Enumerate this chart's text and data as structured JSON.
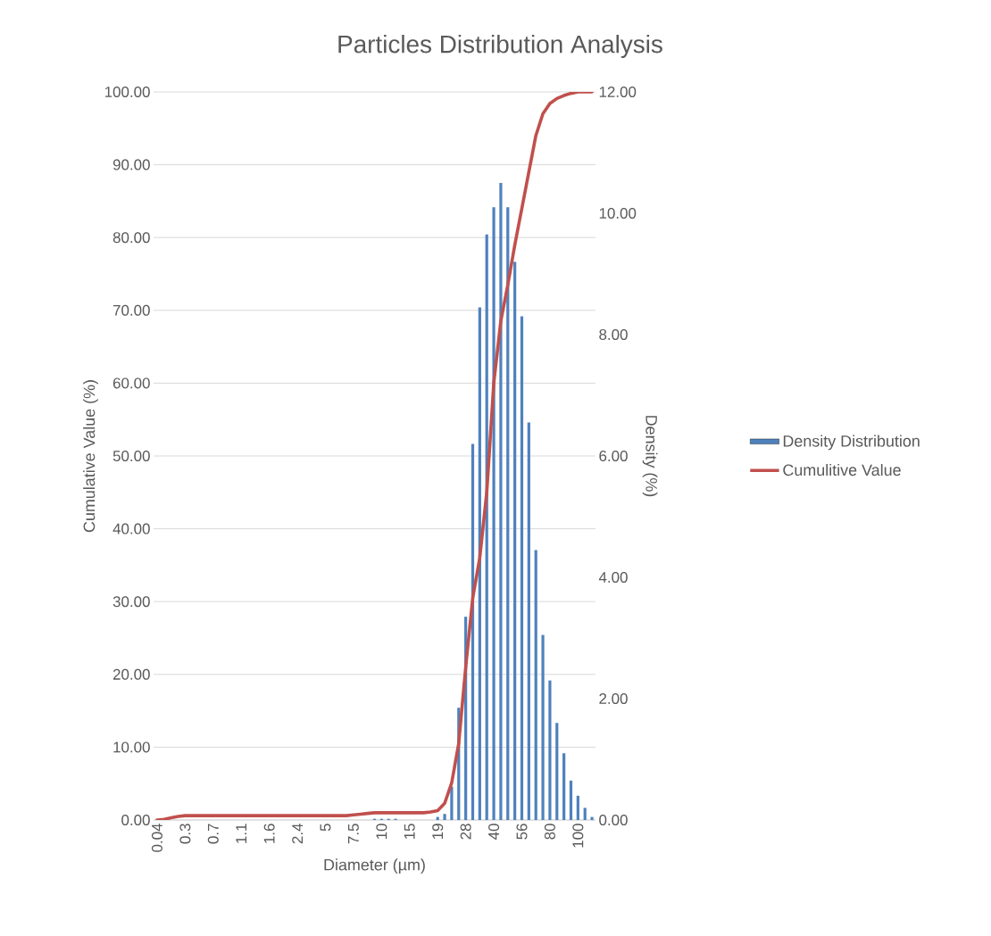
{
  "chart_data": {
    "type": "bar",
    "title": "Particles Distribution Analysis",
    "xlabel": "Diameter (µm)",
    "ylabel": "Cumulative Value (%)",
    "y2label": "Density (%)",
    "categories": [
      "0.04",
      null,
      null,
      null,
      "0.3",
      null,
      null,
      null,
      "0.7",
      null,
      null,
      null,
      "1.1",
      null,
      null,
      null,
      "1.6",
      null,
      null,
      null,
      "2.4",
      null,
      null,
      null,
      "5",
      null,
      null,
      null,
      "7.5",
      null,
      null,
      null,
      "10",
      null,
      null,
      null,
      "15",
      null,
      null,
      null,
      "19",
      null,
      null,
      null,
      "28",
      null,
      null,
      null,
      "40",
      null,
      null,
      null,
      "56",
      null,
      null,
      null,
      "80",
      null,
      null,
      null,
      "100",
      null,
      null
    ],
    "series": [
      {
        "name": "Density Distribution",
        "axis": "y2",
        "color": "#4f81bd",
        "values": [
          0,
          0,
          0,
          0,
          0,
          0,
          0,
          0,
          0,
          0,
          0,
          0,
          0,
          0,
          0,
          0,
          0,
          0,
          0,
          0,
          0,
          0,
          0,
          0,
          0,
          0,
          0,
          0,
          0,
          0,
          0,
          0.02,
          0.02,
          0.02,
          0.02,
          0,
          0,
          0,
          0,
          0,
          0.05,
          0.1,
          0.55,
          1.85,
          3.35,
          6.2,
          8.45,
          9.65,
          10.1,
          10.5,
          10.1,
          9.2,
          8.3,
          6.55,
          4.45,
          3.05,
          2.3,
          1.6,
          1.1,
          0.65,
          0.4,
          0.2,
          0.05
        ]
      },
      {
        "name": "Cumulitive Value",
        "type": "line",
        "axis": "y",
        "color": "#c0504d",
        "values": [
          0,
          0.1,
          0.3,
          0.5,
          0.6,
          0.6,
          0.6,
          0.6,
          0.6,
          0.6,
          0.6,
          0.6,
          0.6,
          0.6,
          0.6,
          0.6,
          0.6,
          0.6,
          0.6,
          0.6,
          0.6,
          0.6,
          0.6,
          0.6,
          0.6,
          0.6,
          0.6,
          0.6,
          0.7,
          0.8,
          0.9,
          1.0,
          1.0,
          1.0,
          1.0,
          1.0,
          1.0,
          1.0,
          1.0,
          1.1,
          1.3,
          2.3,
          5.1,
          10.5,
          21,
          30.5,
          36,
          45,
          60,
          68.5,
          73.5,
          79,
          84,
          89,
          94,
          97,
          98.4,
          99.1,
          99.5,
          99.8,
          100,
          100,
          100
        ]
      }
    ],
    "ylim": [
      0,
      100
    ],
    "yticks": [
      {
        "value": 0,
        "label": "0.00"
      },
      {
        "value": 10,
        "label": "10.00"
      },
      {
        "value": 20,
        "label": "20.00"
      },
      {
        "value": 30,
        "label": "30.00"
      },
      {
        "value": 40,
        "label": "40.00"
      },
      {
        "value": 50,
        "label": "50.00"
      },
      {
        "value": 60,
        "label": "60.00"
      },
      {
        "value": 70,
        "label": "70.00"
      },
      {
        "value": 80,
        "label": "80.00"
      },
      {
        "value": 90,
        "label": "90.00"
      },
      {
        "value": 100,
        "label": "100.00"
      }
    ],
    "y2lim": [
      0,
      12
    ],
    "y2ticks": [
      {
        "value": 0,
        "label": "0.00"
      },
      {
        "value": 2,
        "label": "2.00"
      },
      {
        "value": 4,
        "label": "4.00"
      },
      {
        "value": 6,
        "label": "6.00"
      },
      {
        "value": 8,
        "label": "8.00"
      },
      {
        "value": 10,
        "label": "10.00"
      },
      {
        "value": 12,
        "label": "12.00"
      }
    ],
    "grid": "y",
    "legend": "right"
  }
}
